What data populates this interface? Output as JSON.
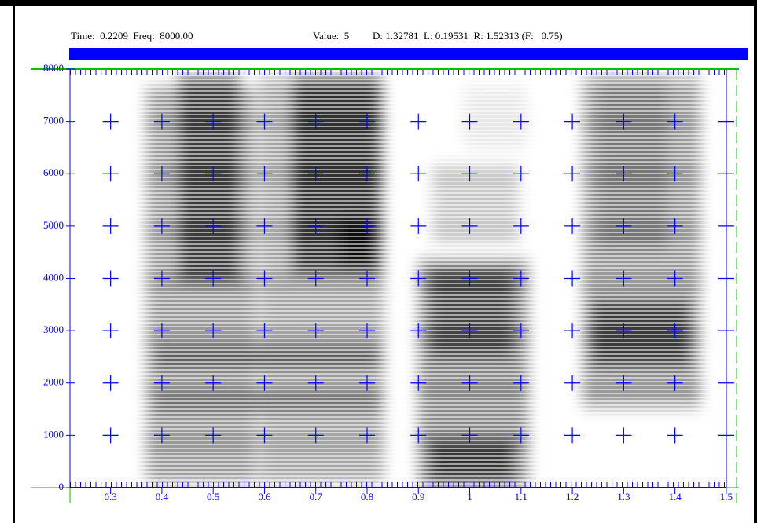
{
  "chart_data": {
    "type": "spectrogram",
    "cursor_readout": "Time:  0.2209  Freq:  8000.00",
    "value_readout": "Value:  5",
    "range_readout": "D: 1.32781  L: 0.19531  R: 1.52313 (F:   0.75)",
    "xlim": [
      0.2209,
      1.52313
    ],
    "ylim": [
      0,
      8000
    ],
    "xticks": [
      0.3,
      0.4,
      0.5,
      0.6,
      0.7,
      0.8,
      0.9,
      1,
      1.1,
      1.2,
      1.3,
      1.4,
      1.5
    ],
    "yticks": [
      0,
      1000,
      2000,
      3000,
      4000,
      5000,
      6000,
      7000,
      8000
    ],
    "grid": true,
    "color": "#0000ff"
  }
}
